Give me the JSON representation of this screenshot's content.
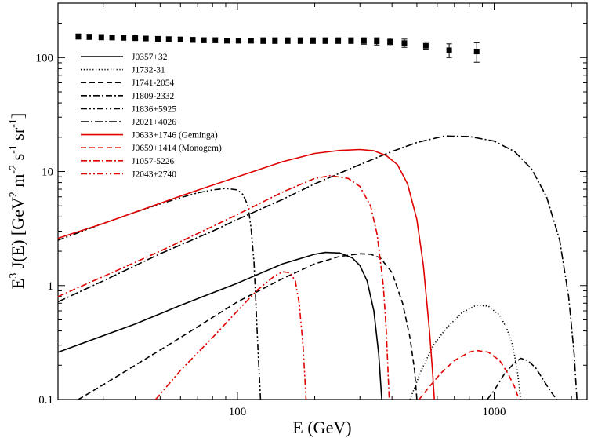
{
  "chart_data": {
    "type": "line",
    "xscale": "log",
    "yscale": "log",
    "xlim": [
      20,
      2300
    ],
    "ylim": [
      0.1,
      300
    ],
    "xlabel": "E (GeV)",
    "ylabel": {
      "prefix": "E",
      "prefix_sup": "3",
      "main": " J(E)  [GeV",
      "sup1": "2",
      "mid1": " m",
      "sup2": "-2",
      "mid2": " s",
      "sup3": "-1",
      "mid3": " sr",
      "sup4": "-1",
      "suffix": "]"
    },
    "xticks": [
      {
        "value": 100,
        "label": "100"
      },
      {
        "value": 1000,
        "label": "1000"
      }
    ],
    "yticks": [
      {
        "value": 0.1,
        "label": "0.1"
      },
      {
        "value": 1,
        "label": "1"
      },
      {
        "value": 10,
        "label": "10"
      },
      {
        "value": 100,
        "label": "100"
      }
    ],
    "legend_position": "upper-left",
    "measurements": [
      {
        "x": 24,
        "y": 153,
        "err": 8
      },
      {
        "x": 26.5,
        "y": 152,
        "err": 8
      },
      {
        "x": 29.5,
        "y": 151,
        "err": 8
      },
      {
        "x": 32.5,
        "y": 150,
        "err": 7
      },
      {
        "x": 36,
        "y": 149,
        "err": 7
      },
      {
        "x": 40,
        "y": 148,
        "err": 7
      },
      {
        "x": 44,
        "y": 147,
        "err": 7
      },
      {
        "x": 49,
        "y": 146,
        "err": 7
      },
      {
        "x": 54,
        "y": 145,
        "err": 7
      },
      {
        "x": 60,
        "y": 144,
        "err": 7
      },
      {
        "x": 67,
        "y": 143,
        "err": 7
      },
      {
        "x": 74,
        "y": 142,
        "err": 7
      },
      {
        "x": 82,
        "y": 142,
        "err": 7
      },
      {
        "x": 91,
        "y": 141,
        "err": 7
      },
      {
        "x": 101,
        "y": 141,
        "err": 7
      },
      {
        "x": 113,
        "y": 141,
        "err": 7
      },
      {
        "x": 126,
        "y": 141,
        "err": 8
      },
      {
        "x": 140,
        "y": 141,
        "err": 8
      },
      {
        "x": 157,
        "y": 141,
        "err": 8
      },
      {
        "x": 176,
        "y": 141,
        "err": 8
      },
      {
        "x": 197,
        "y": 141,
        "err": 8
      },
      {
        "x": 220,
        "y": 141,
        "err": 8
      },
      {
        "x": 247,
        "y": 141,
        "err": 8
      },
      {
        "x": 277,
        "y": 141,
        "err": 8
      },
      {
        "x": 311,
        "y": 140,
        "err": 9
      },
      {
        "x": 349,
        "y": 139,
        "err": 10
      },
      {
        "x": 393,
        "y": 137,
        "err": 10
      },
      {
        "x": 447,
        "y": 134,
        "err": 11
      },
      {
        "x": 542,
        "y": 127,
        "err": 10
      },
      {
        "x": 668,
        "y": 116,
        "err": 16
      },
      {
        "x": 855,
        "y": 113,
        "err": 22
      }
    ],
    "series": [
      {
        "name": "J0357+32",
        "color": "#000000",
        "style": "solid",
        "x": [
          20,
          40,
          60,
          100,
          150,
          200,
          220,
          250,
          280,
          300,
          320,
          340,
          355,
          365
        ],
        "y": [
          0.26,
          0.46,
          0.67,
          1.05,
          1.55,
          1.88,
          1.95,
          1.93,
          1.75,
          1.5,
          1.1,
          0.6,
          0.25,
          0.1
        ]
      },
      {
        "name": "J1732-31",
        "color": "#000000",
        "style": "dotted",
        "x": [
          470,
          520,
          580,
          650,
          750,
          850,
          950,
          1050,
          1120,
          1180,
          1230,
          1270
        ],
        "y": [
          0.1,
          0.18,
          0.3,
          0.42,
          0.58,
          0.67,
          0.66,
          0.55,
          0.42,
          0.3,
          0.18,
          0.1
        ]
      },
      {
        "name": "J1741-2054",
        "color": "#000000",
        "style": "dashed",
        "x": [
          24,
          30,
          40,
          60,
          100,
          150,
          200,
          250,
          300,
          330,
          360,
          400,
          440,
          470,
          490,
          500
        ],
        "y": [
          0.1,
          0.135,
          0.2,
          0.35,
          0.72,
          1.15,
          1.55,
          1.8,
          1.9,
          1.88,
          1.75,
          1.3,
          0.7,
          0.35,
          0.18,
          0.1
        ]
      },
      {
        "name": "J1809-2332",
        "color": "#000000",
        "style": "dashdot",
        "x": [
          940,
          1000,
          1100,
          1200,
          1270,
          1350,
          1450,
          1550,
          1650,
          1750
        ],
        "y": [
          0.1,
          0.12,
          0.17,
          0.21,
          0.23,
          0.22,
          0.19,
          0.15,
          0.12,
          0.1
        ]
      },
      {
        "name": "J1836+5925",
        "color": "#000000",
        "style": "dashdotdot",
        "x": [
          20,
          30,
          40,
          50,
          60,
          70,
          80,
          90,
          100,
          105,
          110,
          113,
          116,
          118,
          120,
          123
        ],
        "y": [
          2.5,
          3.5,
          4.4,
          5.2,
          5.9,
          6.5,
          6.9,
          7.1,
          6.9,
          6.3,
          5.0,
          3.2,
          1.6,
          0.7,
          0.3,
          0.1
        ]
      },
      {
        "name": "J2021+4026",
        "color": "#000000",
        "style": "dashdotlong",
        "x": [
          20,
          30,
          50,
          80,
          100,
          150,
          200,
          300,
          400,
          500,
          640,
          800,
          1000,
          1200,
          1400,
          1600,
          1800,
          1950,
          2050,
          2100
        ],
        "y": [
          0.72,
          1.1,
          1.9,
          3.0,
          3.8,
          5.7,
          7.8,
          11.5,
          15.0,
          18.0,
          20.5,
          20.3,
          18.5,
          15.0,
          10.5,
          6.0,
          2.5,
          0.8,
          0.25,
          0.1
        ]
      },
      {
        "name": "J0633+1746 (Geminga)",
        "color": "#e00000",
        "style": "solid",
        "x": [
          20,
          30,
          40,
          60,
          100,
          150,
          200,
          250,
          300,
          340,
          380,
          420,
          460,
          500,
          530,
          560,
          575,
          585
        ],
        "y": [
          2.6,
          3.5,
          4.4,
          6.1,
          9.0,
          12.2,
          14.4,
          15.3,
          15.6,
          15.2,
          13.8,
          11.5,
          7.8,
          3.8,
          1.5,
          0.4,
          0.18,
          0.1
        ]
      },
      {
        "name": "J0659+1414 (Monogem)",
        "color": "#e00000",
        "style": "dashed",
        "x": [
          510,
          560,
          620,
          700,
          800,
          850,
          950,
          1050,
          1130,
          1200,
          1250
        ],
        "y": [
          0.1,
          0.13,
          0.17,
          0.22,
          0.26,
          0.27,
          0.26,
          0.22,
          0.17,
          0.13,
          0.1
        ]
      },
      {
        "name": "J1057-5226",
        "color": "#e00000",
        "style": "dashdot",
        "x": [
          20,
          30,
          50,
          80,
          100,
          150,
          200,
          230,
          270,
          300,
          330,
          350,
          370,
          380,
          390
        ],
        "y": [
          0.8,
          1.2,
          2.0,
          3.3,
          4.2,
          6.6,
          8.7,
          9.2,
          8.7,
          7.4,
          5.0,
          2.8,
          1.0,
          0.4,
          0.1
        ]
      },
      {
        "name": "J2043+2740",
        "color": "#e00000",
        "style": "dashdotdot",
        "x": [
          48,
          60,
          80,
          100,
          120,
          140,
          150,
          160,
          168,
          174,
          180,
          185
        ],
        "y": [
          0.1,
          0.18,
          0.35,
          0.6,
          0.92,
          1.22,
          1.32,
          1.3,
          1.1,
          0.7,
          0.3,
          0.1
        ]
      }
    ]
  }
}
